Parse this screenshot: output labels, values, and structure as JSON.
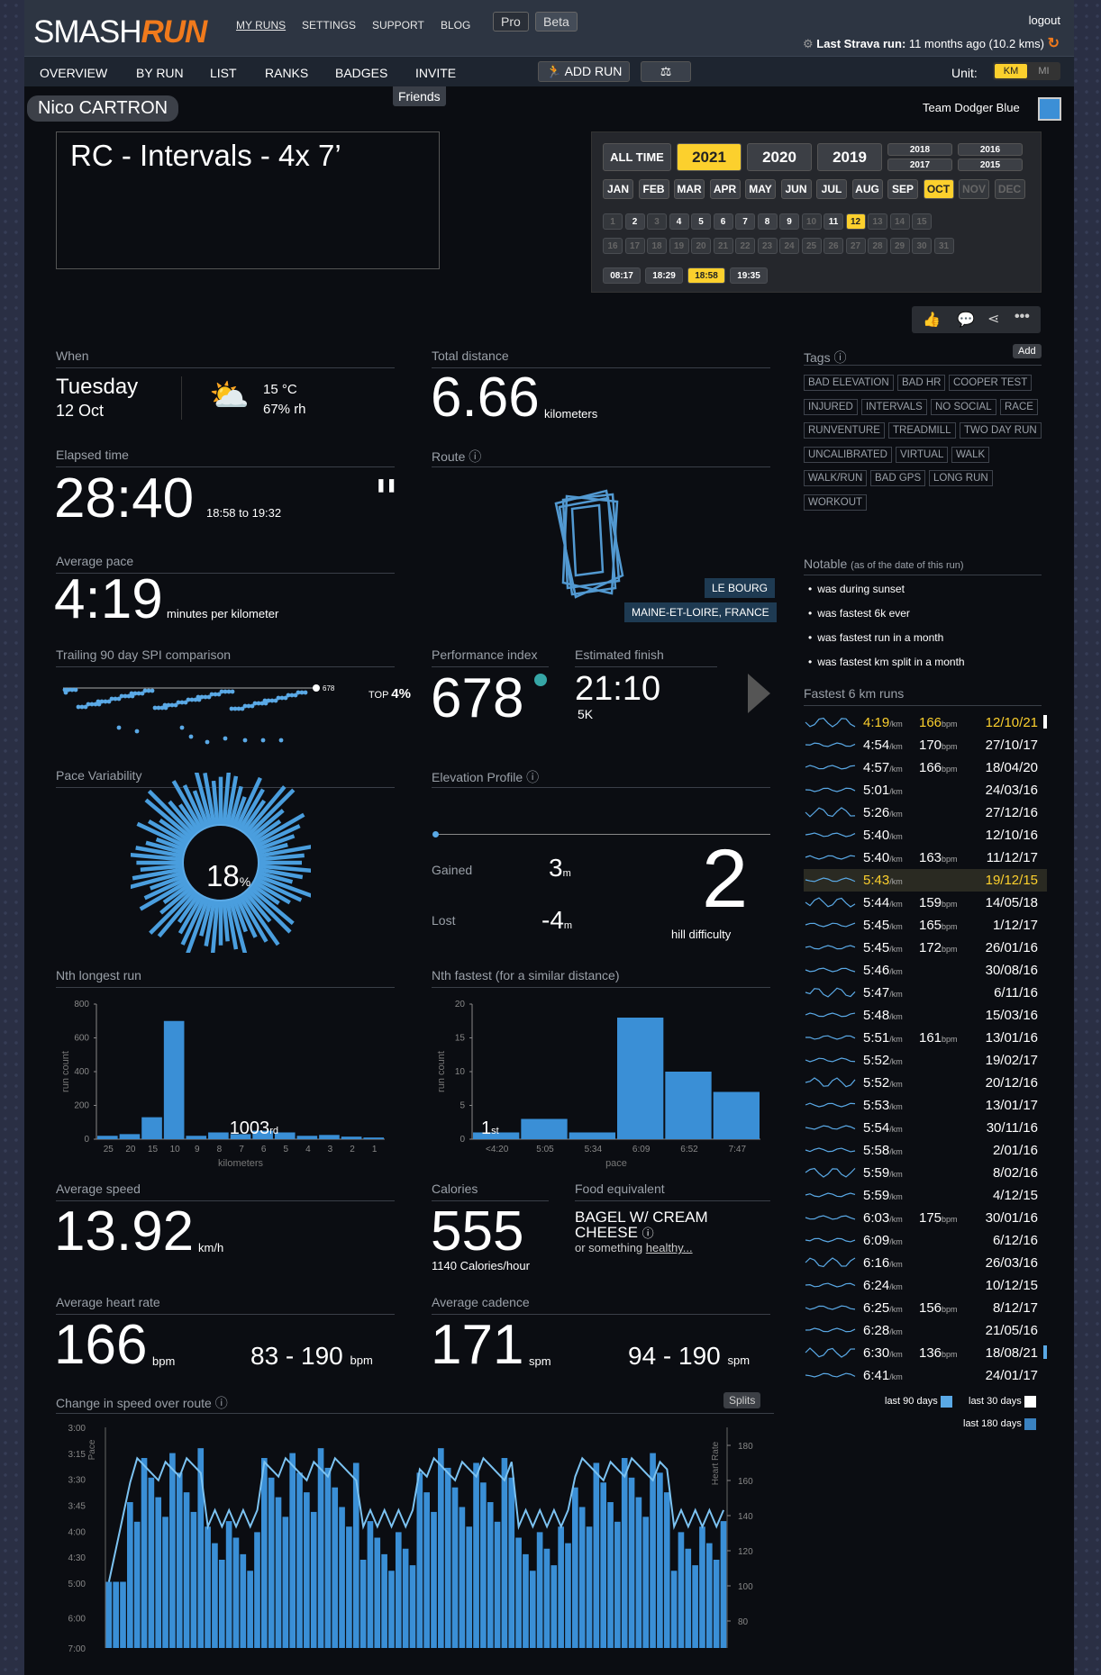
{
  "header": {
    "logo_a": "SMASH",
    "logo_b": "RUN",
    "nav": [
      "MY RUNS",
      "SETTINGS",
      "SUPPORT",
      "BLOG"
    ],
    "pro": "Pro",
    "beta": "Beta",
    "logout": "logout",
    "strava": "Last Strava run:",
    "strava_val": "11 months ago (10.2 kms)"
  },
  "subnav": {
    "items": [
      "OVERVIEW",
      "BY RUN",
      "LIST",
      "RANKS",
      "BADGES",
      "INVITE"
    ],
    "add_run": "ADD RUN",
    "friends": "Friends",
    "unit_label": "Unit:",
    "km": "KM",
    "mi": "MI"
  },
  "user": {
    "name": "Nico CARTRON",
    "team": "Team Dodger Blue"
  },
  "run": {
    "title": "RC - Intervals - 4x 7’"
  },
  "selector": {
    "all_time": "ALL TIME",
    "years": [
      "2021",
      "2020",
      "2019"
    ],
    "small_years": [
      "2018",
      "2016",
      "2017",
      "2015"
    ],
    "months": [
      "JAN",
      "FEB",
      "MAR",
      "APR",
      "MAY",
      "JUN",
      "JUL",
      "AUG",
      "SEP",
      "OCT",
      "NOV",
      "DEC"
    ],
    "days1": [
      "1",
      "2",
      "3",
      "4",
      "5",
      "6",
      "7",
      "8",
      "9",
      "10",
      "11",
      "12",
      "13",
      "14",
      "15"
    ],
    "days2": [
      "16",
      "17",
      "18",
      "19",
      "20",
      "21",
      "22",
      "23",
      "24",
      "25",
      "26",
      "27",
      "28",
      "29",
      "30",
      "31"
    ],
    "times": [
      "08:17",
      "18:29",
      "18:58",
      "19:35"
    ]
  },
  "when": {
    "label": "When",
    "day": "Tuesday",
    "date": "12 Oct",
    "temp": "15 °C",
    "humidity": "67% rh"
  },
  "distance": {
    "label": "Total distance",
    "value": "6.66",
    "unit": "kilometers"
  },
  "elapsed": {
    "label": "Elapsed time",
    "value": "28:40",
    "range": "18:58 to 19:32"
  },
  "route": {
    "label": "Route",
    "place1": "LE BOURG",
    "place2": "MAINE-ET-LOIRE, FRANCE"
  },
  "pace": {
    "label": "Average pace",
    "value": "4:19",
    "unit": "minutes per kilometer"
  },
  "spi": {
    "label": "Trailing 90 day SPI comparison",
    "val": "678",
    "top_label": "TOP",
    "top": "4%"
  },
  "perf": {
    "label": "Performance index",
    "value": "678"
  },
  "finish": {
    "label": "Estimated finish",
    "value": "21:10",
    "dist": "5K"
  },
  "variability": {
    "label": "Pace Variability",
    "value": "18",
    "unit": "%"
  },
  "elevation": {
    "label": "Elevation Profile",
    "gained_label": "Gained",
    "gained": "3",
    "lost_label": "Lost",
    "lost": "-4",
    "unit": "m",
    "hill": "2",
    "hill_label": "hill difficulty"
  },
  "nth_longest": {
    "label": "Nth longest run",
    "ylabel": "run count",
    "xlabel": "kilometers",
    "rank": "1003",
    "suffix": "rd"
  },
  "nth_fastest": {
    "label": "Nth fastest (for a similar distance)",
    "ylabel": "run count",
    "xlabel": "pace",
    "rank": "1",
    "suffix": "st"
  },
  "speed": {
    "label": "Average speed",
    "value": "13.92",
    "unit": "km/h"
  },
  "calories": {
    "label": "Calories",
    "value": "555",
    "per_hour": "1140",
    "per_hour_unit": "Calories/hour"
  },
  "food": {
    "label": "Food equivalent",
    "value": "BAGEL W/ CREAM CHEESE",
    "sub1": "or something",
    "sub2": "healthy..."
  },
  "hr": {
    "label": "Average heart rate",
    "value": "166",
    "unit": "bpm",
    "range": "83 - 190",
    "range_unit": "bpm"
  },
  "cadence": {
    "label": "Average cadence",
    "value": "171",
    "unit": "spm",
    "range": "94 - 190",
    "range_unit": "spm"
  },
  "change": {
    "label": "Change in speed over route",
    "splits": "Splits",
    "pace_label": "Pace",
    "hr_label": "Heart Rate",
    "y_left": [
      "3:00",
      "3:15",
      "3:30",
      "3:45",
      "4:00",
      "4:30",
      "5:00",
      "6:00",
      "7:00"
    ],
    "y_right": [
      "180",
      "160",
      "140",
      "120",
      "100",
      "80"
    ]
  },
  "tags": {
    "label": "Tags",
    "add": "Add",
    "items": [
      "BAD ELEVATION",
      "BAD HR",
      "COOPER TEST",
      "INJURED",
      "INTERVALS",
      "NO SOCIAL",
      "RACE",
      "RUNVENTURE",
      "TREADMILL",
      "TWO DAY RUN",
      "UNCALIBRATED",
      "VIRTUAL",
      "WALK",
      "WALK/RUN",
      "BAD GPS",
      "LONG RUN",
      "WORKOUT"
    ]
  },
  "notable": {
    "label": "Notable",
    "sub": "(as of the date of this run)",
    "items": [
      "was during sunset",
      "was fastest 6k ever",
      "was fastest run in a month",
      "was fastest km split in a month"
    ]
  },
  "fastest": {
    "label": "Fastest 6 km runs",
    "unit": "/km",
    "bpm_unit": "bpm",
    "rows": [
      [
        "4:19",
        "166",
        "12/10/21"
      ],
      [
        "4:54",
        "170",
        "27/10/17"
      ],
      [
        "4:57",
        "166",
        "18/04/20"
      ],
      [
        "5:01",
        "",
        "24/03/16"
      ],
      [
        "5:26",
        "",
        "27/12/16"
      ],
      [
        "5:40",
        "",
        "12/10/16"
      ],
      [
        "5:40",
        "163",
        "11/12/17"
      ],
      [
        "5:43",
        "",
        "19/12/15"
      ],
      [
        "5:44",
        "159",
        "14/05/18"
      ],
      [
        "5:45",
        "165",
        "1/12/17"
      ],
      [
        "5:45",
        "172",
        "26/01/16"
      ],
      [
        "5:46",
        "",
        "30/08/16"
      ],
      [
        "5:47",
        "",
        "6/11/16"
      ],
      [
        "5:48",
        "",
        "15/03/16"
      ],
      [
        "5:51",
        "161",
        "13/01/16"
      ],
      [
        "5:52",
        "",
        "19/02/17"
      ],
      [
        "5:52",
        "",
        "20/12/16"
      ],
      [
        "5:53",
        "",
        "13/01/17"
      ],
      [
        "5:54",
        "",
        "30/11/16"
      ],
      [
        "5:58",
        "",
        "2/01/16"
      ],
      [
        "5:59",
        "",
        "8/02/16"
      ],
      [
        "5:59",
        "",
        "4/12/15"
      ],
      [
        "6:03",
        "175",
        "30/01/16"
      ],
      [
        "6:09",
        "",
        "6/12/16"
      ],
      [
        "6:16",
        "",
        "26/03/16"
      ],
      [
        "6:24",
        "",
        "10/12/15"
      ],
      [
        "6:25",
        "156",
        "8/12/17"
      ],
      [
        "6:28",
        "",
        "21/05/16"
      ],
      [
        "6:30",
        "136",
        "18/08/21"
      ],
      [
        "6:41",
        "",
        "24/01/17"
      ]
    ],
    "legend": [
      "last 90 days",
      "last 30 days",
      "last 180 days"
    ]
  },
  "chart_data": [
    {
      "type": "bar",
      "title": "Nth longest run",
      "xlabel": "kilometers",
      "ylabel": "run count",
      "ylim": [
        0,
        800
      ],
      "yticks": [
        0,
        200,
        400,
        600,
        800
      ],
      "categories": [
        "25",
        "20",
        "15",
        "10",
        "9",
        "8",
        "7",
        "6",
        "5",
        "4",
        "3",
        "2",
        "1"
      ],
      "values": [
        20,
        30,
        130,
        700,
        20,
        40,
        30,
        50,
        40,
        20,
        25,
        15,
        10
      ]
    },
    {
      "type": "bar",
      "title": "Nth fastest (for a similar distance)",
      "xlabel": "pace",
      "ylabel": "run count",
      "ylim": [
        0,
        20
      ],
      "yticks": [
        0,
        5,
        10,
        15,
        20
      ],
      "categories": [
        "<4:20",
        "5:05",
        "5:34",
        "6:09",
        "6:52",
        "7:47"
      ],
      "values": [
        1,
        3,
        1,
        18,
        10,
        7
      ]
    }
  ]
}
